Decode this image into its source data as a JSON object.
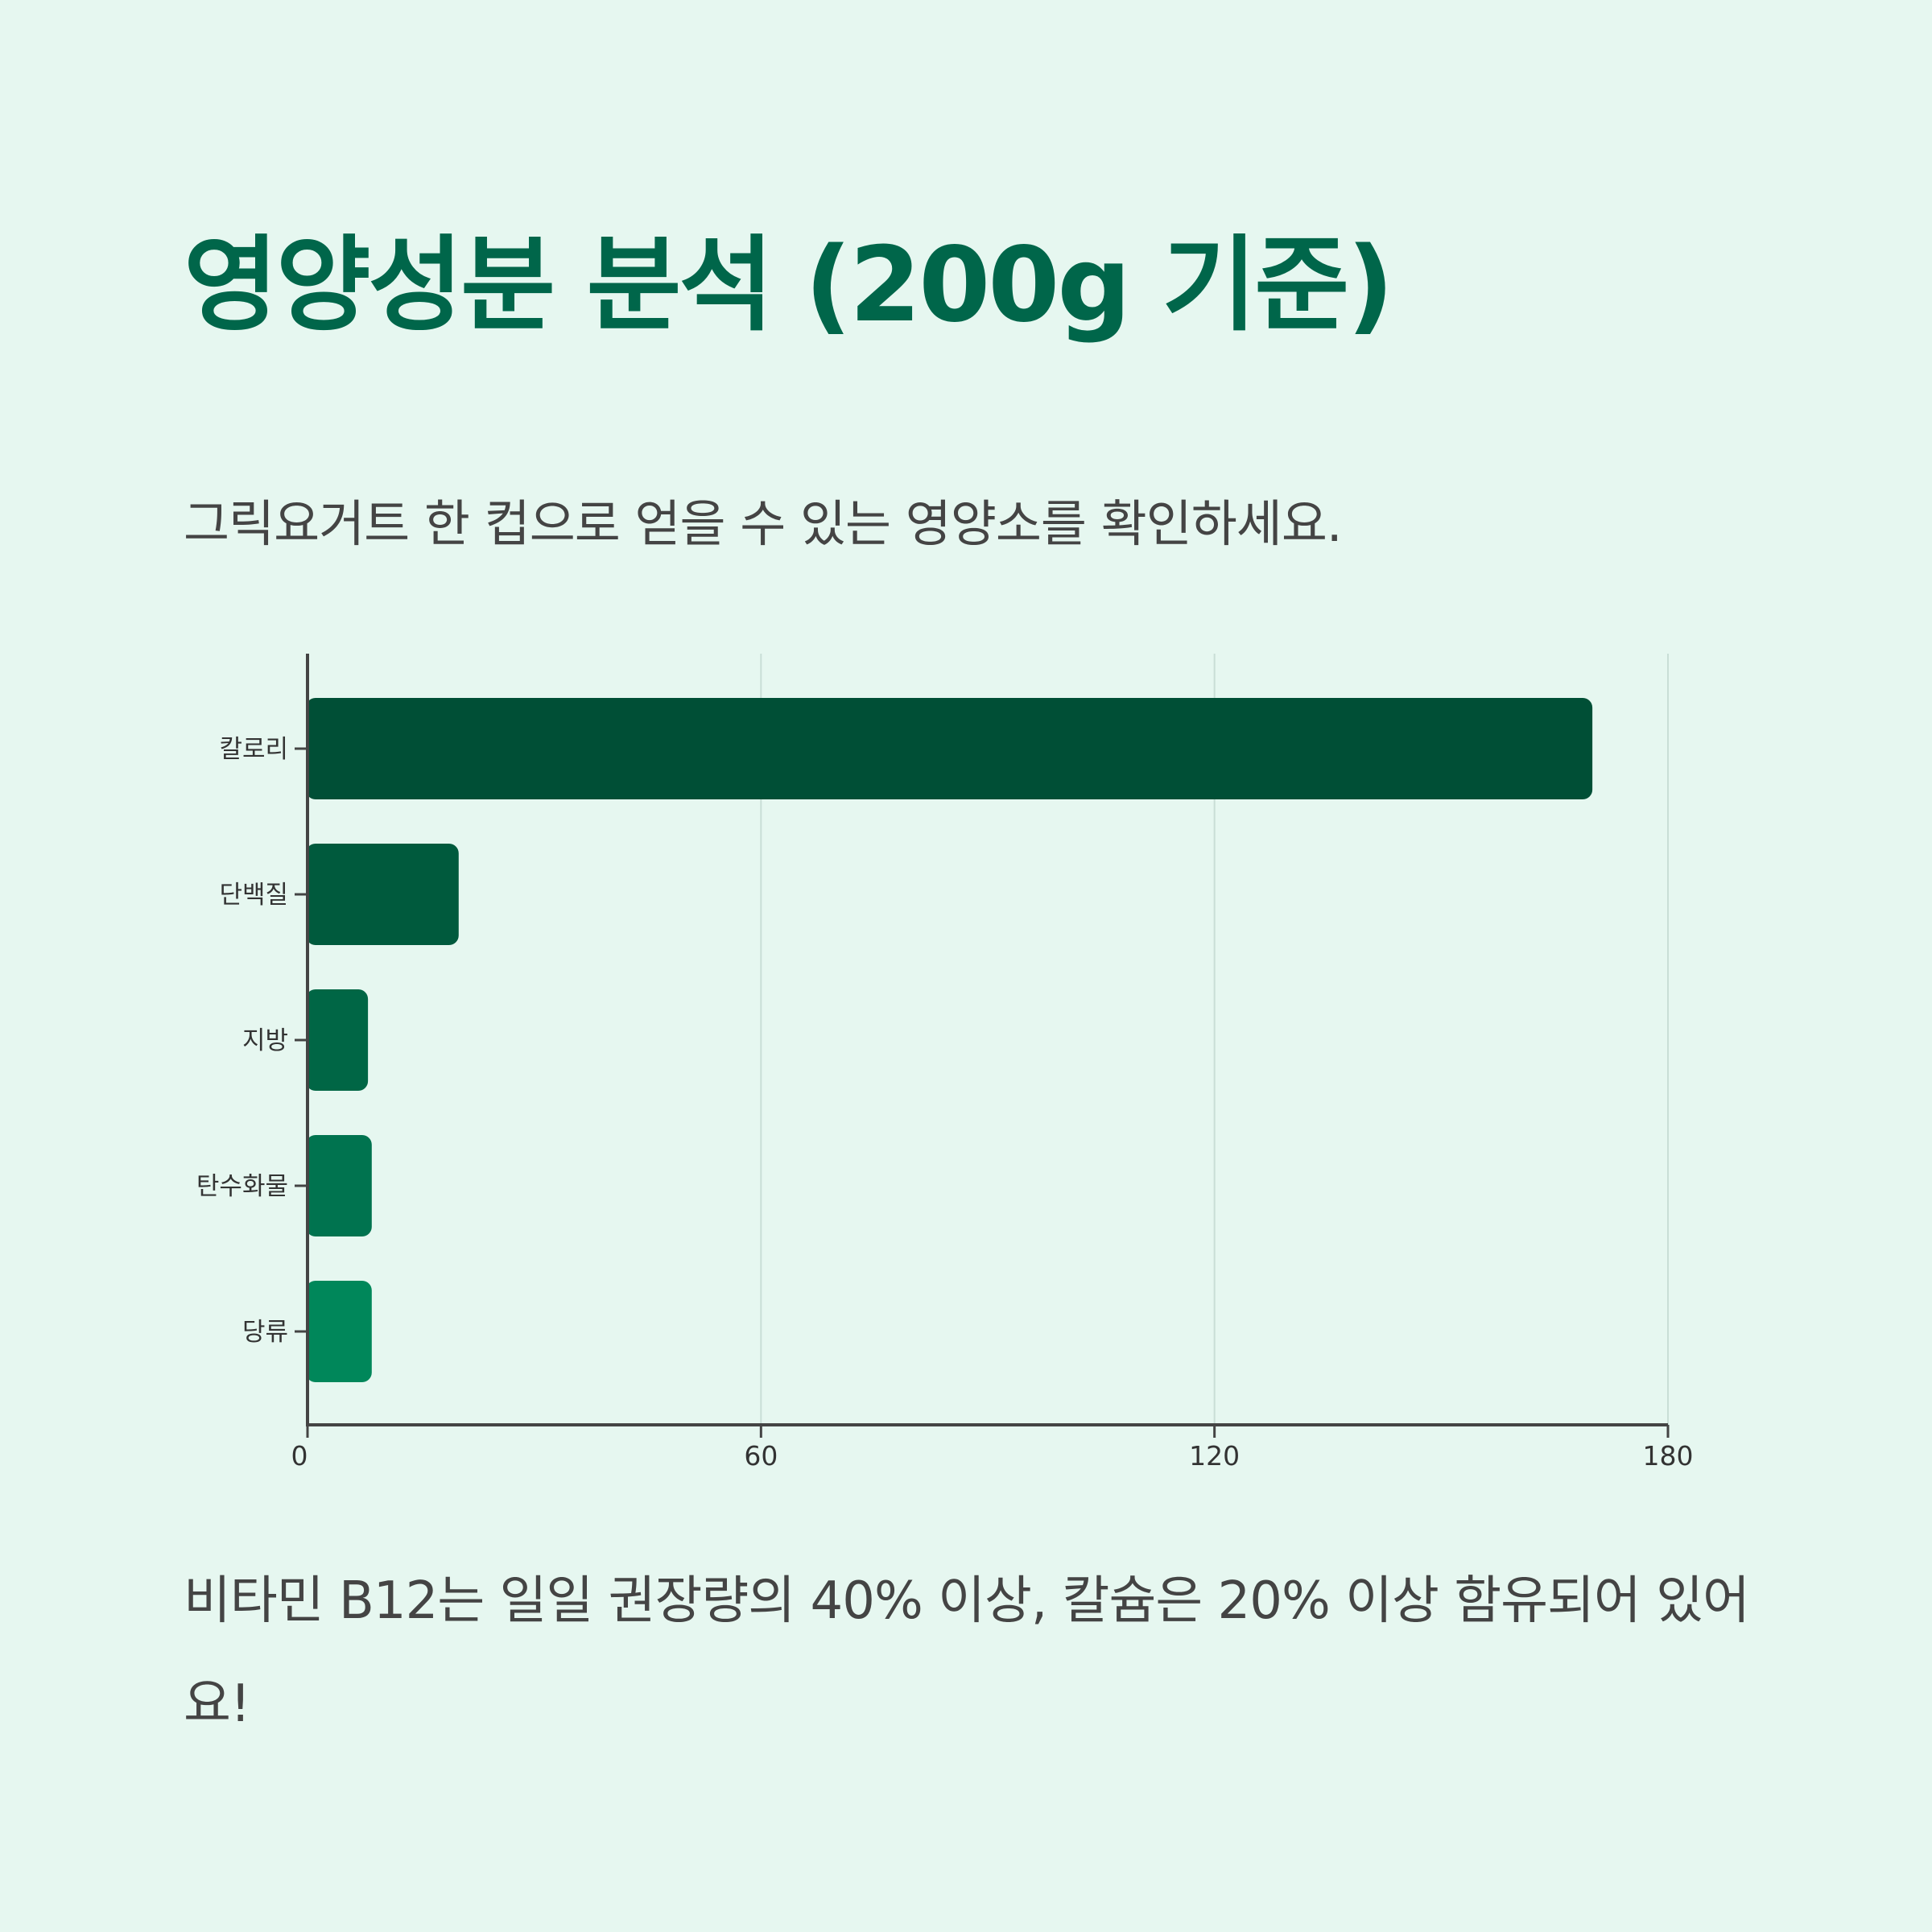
{
  "page": {
    "title": "영양성분 분석 (200g 기준)",
    "subtitle": "그릭요거트 한 컵으로 얻을 수 있는 영양소를 확인하세요.",
    "footnote": "비타민 B12는 일일 권장량의 40% 이상, 칼슘은 20% 이상 함유되어 있어요!"
  },
  "colors": {
    "background": "#e6f7f0",
    "title": "#00664a",
    "text": "#444444",
    "bars": [
      "#004f36",
      "#005a3d",
      "#006645",
      "#00734f",
      "#00875a"
    ]
  },
  "chart_data": {
    "type": "bar",
    "orientation": "horizontal",
    "categories": [
      "칼로리",
      "단백질",
      "지방",
      "탄수화물",
      "당류"
    ],
    "values": [
      170,
      20,
      8,
      8.5,
      8.5
    ],
    "xlim": [
      0,
      180
    ],
    "xticks": [
      "0",
      "60",
      "120",
      "180"
    ],
    "xtick_values": [
      0,
      60,
      120,
      180
    ],
    "grid": "vertical",
    "title": "",
    "xlabel": "",
    "ylabel": ""
  }
}
